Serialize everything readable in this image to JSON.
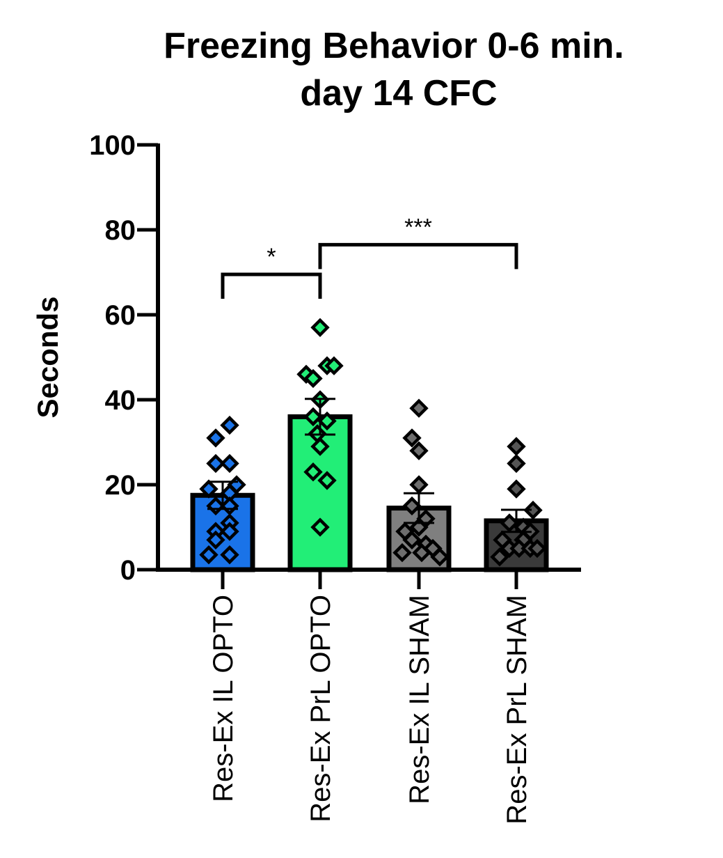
{
  "chart_data": {
    "type": "bar",
    "title": [
      "Freezing Behavior 0-6 min.",
      "day 14 CFC"
    ],
    "ylabel": "Seconds",
    "xlabel": "",
    "ylim": [
      0,
      100
    ],
    "yticks": [
      0,
      20,
      40,
      60,
      80,
      100
    ],
    "categories": [
      "Res-Ex IL OPTO",
      "Res-Ex PrL OPTO",
      "Res-Ex IL SHAM",
      "Res-Ex PrL SHAM"
    ],
    "values": [
      17.5,
      36,
      14.5,
      11.5
    ],
    "sem": [
      3.2,
      4.2,
      3.5,
      2.6
    ],
    "bar_colors": [
      "#1a73e8",
      "#22ee77",
      "#7f7f7f",
      "#3a3a3a"
    ],
    "point_colors": [
      "#1a73e8",
      "#22ee77",
      "#6e6e6e",
      "#555555"
    ],
    "points": [
      [
        [
          -0.05,
          31
        ],
        [
          0.05,
          34
        ],
        [
          -0.05,
          25
        ],
        [
          0.05,
          25
        ],
        [
          -0.1,
          19
        ],
        [
          0.05,
          18
        ],
        [
          0.1,
          20
        ],
        [
          -0.05,
          15
        ],
        [
          0.05,
          15
        ],
        [
          0.05,
          11
        ],
        [
          -0.05,
          9
        ],
        [
          0.05,
          9
        ],
        [
          -0.1,
          3.5
        ],
        [
          0.05,
          3.5
        ],
        [
          -0.05,
          7
        ]
      ],
      [
        [
          0.0,
          57
        ],
        [
          -0.1,
          46
        ],
        [
          -0.05,
          45
        ],
        [
          0.05,
          48
        ],
        [
          0.1,
          48
        ],
        [
          0.0,
          40
        ],
        [
          -0.05,
          36
        ],
        [
          0.05,
          35
        ],
        [
          -0.02,
          32
        ],
        [
          0.0,
          29
        ],
        [
          -0.05,
          23
        ],
        [
          0.05,
          21
        ],
        [
          0.0,
          10
        ]
      ],
      [
        [
          0.0,
          38
        ],
        [
          -0.05,
          31
        ],
        [
          0.0,
          28
        ],
        [
          0.0,
          20
        ],
        [
          -0.05,
          15
        ],
        [
          0.05,
          12
        ],
        [
          -0.1,
          9
        ],
        [
          0.0,
          10
        ],
        [
          -0.05,
          7
        ],
        [
          0.05,
          6
        ],
        [
          -0.12,
          4
        ],
        [
          0.02,
          4
        ],
        [
          0.1,
          5
        ],
        [
          0.15,
          3
        ]
      ],
      [
        [
          0.0,
          29
        ],
        [
          0.0,
          25
        ],
        [
          0.0,
          19
        ],
        [
          0.12,
          14
        ],
        [
          -0.05,
          11
        ],
        [
          0.05,
          10
        ],
        [
          0.1,
          9
        ],
        [
          -0.1,
          7
        ],
        [
          0.05,
          7
        ],
        [
          -0.12,
          3
        ],
        [
          -0.05,
          5
        ],
        [
          0.02,
          5
        ],
        [
          0.1,
          5
        ],
        [
          0.15,
          5
        ]
      ]
    ],
    "significance": [
      {
        "from": 0,
        "to": 1,
        "label": "*",
        "y": 69.5
      },
      {
        "from": 1,
        "to": 3,
        "label": "***",
        "y": 76.5
      }
    ],
    "grid": false,
    "legend": "none"
  }
}
